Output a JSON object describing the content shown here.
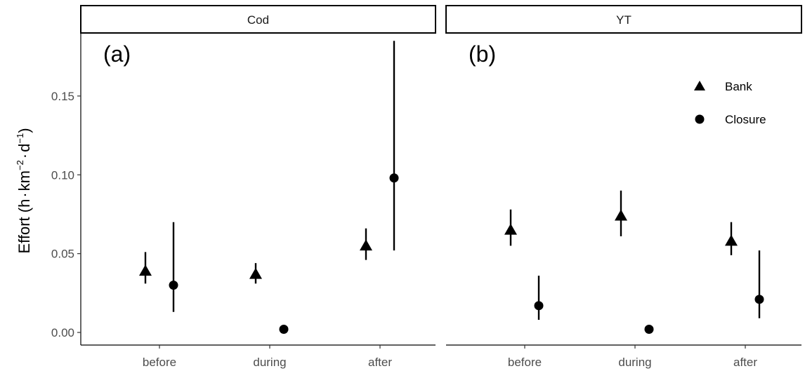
{
  "chart_data": {
    "type": "scatter",
    "subtype": "point-range (faceted)",
    "ylabel": "Effort (h·km⁻²·d⁻¹)",
    "ylabel_parts": {
      "prefix": "Effort (h",
      "unit1": "km",
      "exp1": "−2",
      "unit2": "d",
      "exp2": "−1",
      "suffix": ")"
    },
    "ylim": [
      -0.008,
      0.19
    ],
    "yticks": [
      0.0,
      0.05,
      0.1,
      0.15
    ],
    "ytick_labels": [
      "0.00",
      "0.05",
      "0.10",
      "0.15"
    ],
    "categories": [
      "before",
      "during",
      "after"
    ],
    "legend": {
      "position": "top-right (panel b)",
      "entries": [
        "Bank",
        "Closure"
      ]
    },
    "grid": false,
    "panels": [
      {
        "strip": "Cod",
        "tag": "(a)",
        "series": [
          {
            "name": "Bank",
            "marker": "triangle",
            "values": [
              0.039,
              0.037,
              0.055
            ],
            "lower": [
              0.031,
              0.031,
              0.046
            ],
            "upper": [
              0.051,
              0.044,
              0.066
            ]
          },
          {
            "name": "Closure",
            "marker": "circle",
            "values": [
              0.03,
              0.002,
              0.098
            ],
            "lower": [
              0.013,
              null,
              0.052
            ],
            "upper": [
              0.07,
              null,
              0.185
            ]
          }
        ]
      },
      {
        "strip": "YT",
        "tag": "(b)",
        "series": [
          {
            "name": "Bank",
            "marker": "triangle",
            "values": [
              0.065,
              0.074,
              0.058
            ],
            "lower": [
              0.055,
              0.061,
              0.049
            ],
            "upper": [
              0.078,
              0.09,
              0.07
            ]
          },
          {
            "name": "Closure",
            "marker": "circle",
            "values": [
              0.017,
              0.002,
              0.021
            ],
            "lower": [
              0.008,
              null,
              0.009
            ],
            "upper": [
              0.036,
              null,
              0.052
            ]
          }
        ]
      }
    ]
  }
}
